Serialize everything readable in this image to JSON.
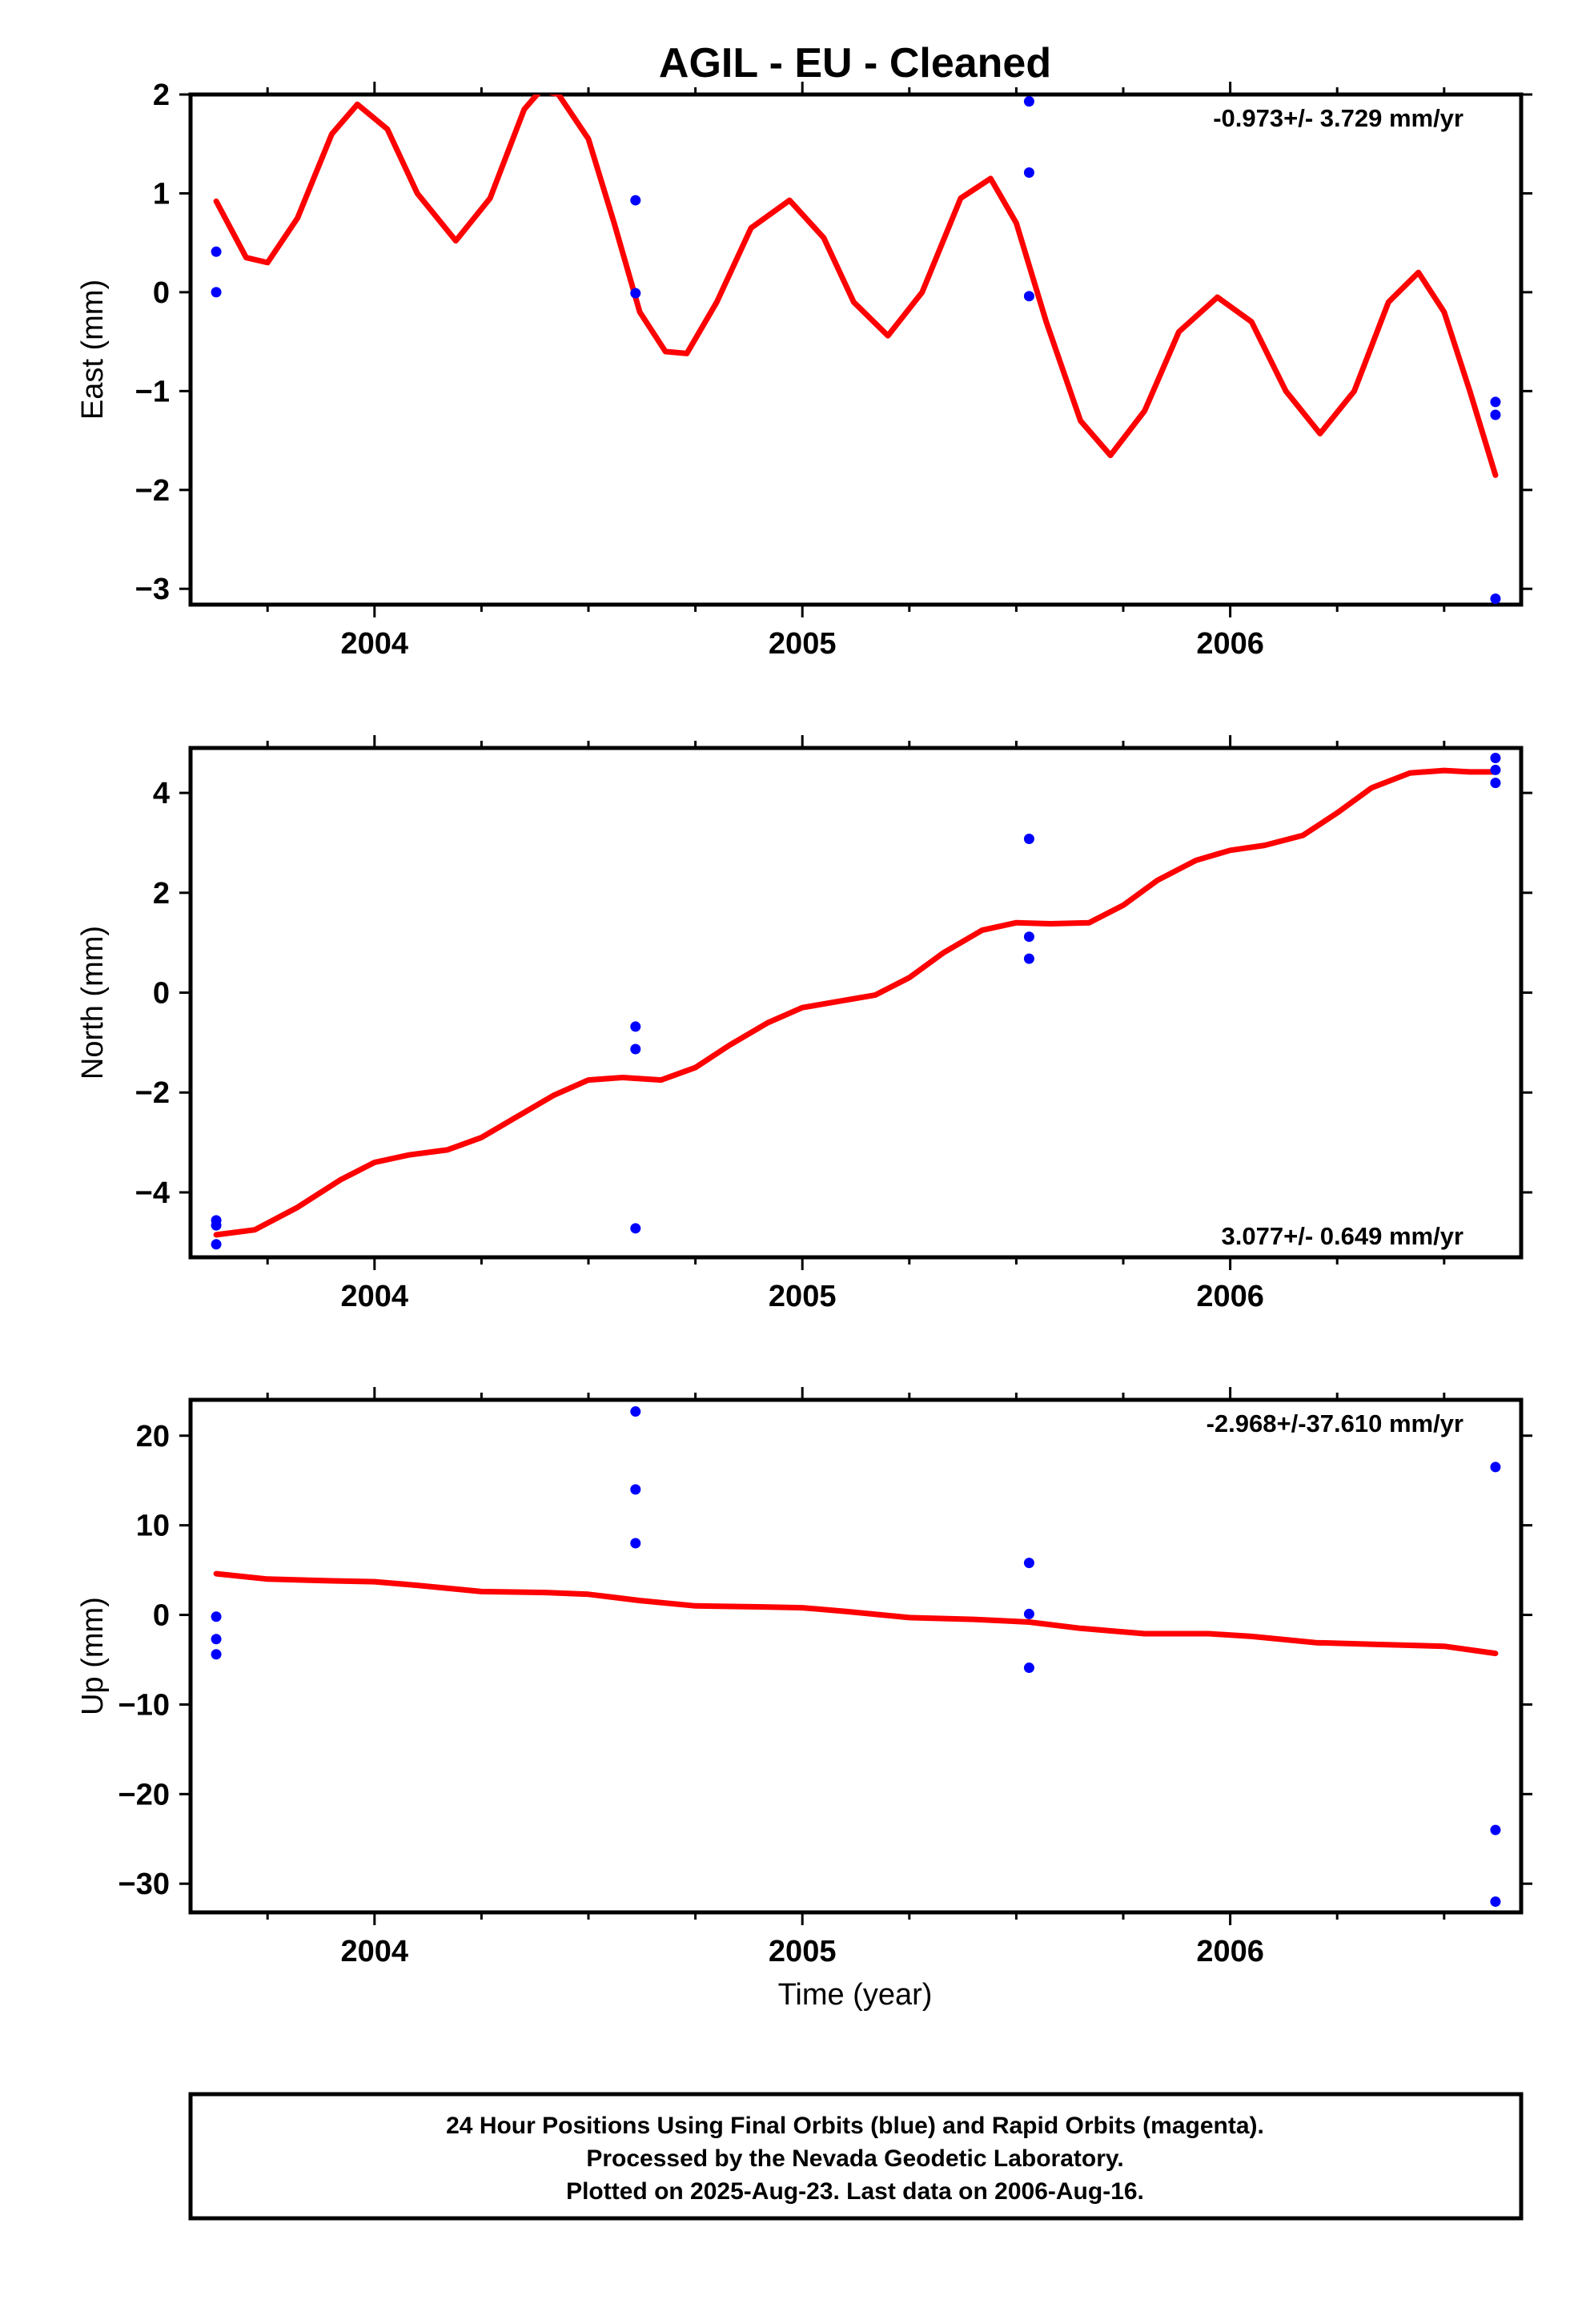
{
  "title": "AGIL  - EU - Cleaned",
  "xlabel": "Time (year)",
  "footer": {
    "lines": [
      "24 Hour Positions Using Final Orbits (blue) and Rapid Orbits (magenta).",
      "Processed by the Nevada Geodetic Laboratory.",
      "Plotted on 2025-Aug-23. Last data on 2006-Aug-16."
    ]
  },
  "colors": {
    "points": "#0000ff",
    "model": "#ff0000",
    "frame": "#000000"
  },
  "chart_data": [
    {
      "type": "scatter",
      "ylabel": "East (mm)",
      "rate_label": "-0.973+/- 3.729 mm/yr",
      "xlim": [
        2003.57,
        2006.68
      ],
      "ylim": [
        -3.16,
        2.0
      ],
      "x_ticks": [
        2004,
        2005,
        2006
      ],
      "x_tick_labels": [
        "2004",
        "2005",
        "2006"
      ],
      "y_ticks": [
        2,
        1,
        0,
        -1,
        -2,
        -3
      ],
      "y_tick_labels": [
        "2",
        "1",
        "0",
        "−1",
        "−2",
        "−3"
      ],
      "points": [
        {
          "x": 2003.63,
          "y": 0.41
        },
        {
          "x": 2003.63,
          "y": 0.0
        },
        {
          "x": 2004.61,
          "y": 0.93
        },
        {
          "x": 2004.61,
          "y": -0.01
        },
        {
          "x": 2005.53,
          "y": 1.93
        },
        {
          "x": 2005.53,
          "y": 1.21
        },
        {
          "x": 2005.53,
          "y": -0.04
        },
        {
          "x": 2006.62,
          "y": -1.11
        },
        {
          "x": 2006.62,
          "y": -1.24
        },
        {
          "x": 2006.62,
          "y": -3.1
        }
      ],
      "model": {
        "x": [
          2003.63,
          2003.7,
          2003.75,
          2003.82,
          2003.9,
          2003.96,
          2004.03,
          2004.1,
          2004.19,
          2004.27,
          2004.35,
          2004.39,
          2004.43,
          2004.5,
          2004.56,
          2004.62,
          2004.68,
          2004.73,
          2004.8,
          2004.88,
          2004.97,
          2005.05,
          2005.12,
          2005.2,
          2005.28,
          2005.37,
          2005.44,
          2005.5,
          2005.57,
          2005.65,
          2005.72,
          2005.8,
          2005.88,
          2005.97,
          2006.05,
          2006.13,
          2006.21,
          2006.29,
          2006.37,
          2006.44,
          2006.5,
          2006.56,
          2006.62
        ],
        "y": [
          0.92,
          0.35,
          0.3,
          0.75,
          1.6,
          1.9,
          1.65,
          1.0,
          0.52,
          0.95,
          1.85,
          2.05,
          2.0,
          1.55,
          0.7,
          -0.2,
          -0.6,
          -0.62,
          -0.1,
          0.65,
          0.93,
          0.55,
          -0.1,
          -0.44,
          0.0,
          0.95,
          1.15,
          0.7,
          -0.3,
          -1.3,
          -1.65,
          -1.2,
          -0.4,
          -0.05,
          -0.3,
          -1.0,
          -1.43,
          -1.0,
          -0.1,
          0.2,
          -0.2,
          -1.0,
          -1.85
        ]
      }
    },
    {
      "type": "scatter",
      "ylabel": "North (mm)",
      "rate_label": "3.077+/- 0.649 mm/yr",
      "xlim": [
        2003.57,
        2006.68
      ],
      "ylim": [
        -5.3,
        4.9
      ],
      "x_ticks": [
        2004,
        2005,
        2006
      ],
      "x_tick_labels": [
        "2004",
        "2005",
        "2006"
      ],
      "y_ticks": [
        4,
        2,
        0,
        -2,
        -4
      ],
      "y_tick_labels": [
        "4",
        "2",
        "0",
        "−2",
        "−4"
      ],
      "points": [
        {
          "x": 2003.63,
          "y": -4.56
        },
        {
          "x": 2003.63,
          "y": -4.66
        },
        {
          "x": 2003.63,
          "y": -5.04
        },
        {
          "x": 2004.61,
          "y": -0.68
        },
        {
          "x": 2004.61,
          "y": -1.13
        },
        {
          "x": 2004.61,
          "y": -4.72
        },
        {
          "x": 2005.53,
          "y": 3.08
        },
        {
          "x": 2005.53,
          "y": 1.12
        },
        {
          "x": 2005.53,
          "y": 0.68
        },
        {
          "x": 2006.62,
          "y": 4.7
        },
        {
          "x": 2006.62,
          "y": 4.46
        },
        {
          "x": 2006.62,
          "y": 4.2
        }
      ],
      "model": {
        "x": [
          2003.63,
          2003.72,
          2003.82,
          2003.92,
          2004.0,
          2004.08,
          2004.17,
          2004.25,
          2004.33,
          2004.42,
          2004.5,
          2004.58,
          2004.67,
          2004.75,
          2004.83,
          2004.92,
          2005.0,
          2005.08,
          2005.17,
          2005.25,
          2005.33,
          2005.42,
          2005.5,
          2005.58,
          2005.67,
          2005.75,
          2005.83,
          2005.92,
          2006.0,
          2006.08,
          2006.17,
          2006.25,
          2006.33,
          2006.42,
          2006.5,
          2006.56,
          2006.62
        ],
        "y": [
          -4.85,
          -4.75,
          -4.3,
          -3.75,
          -3.4,
          -3.25,
          -3.15,
          -2.9,
          -2.5,
          -2.05,
          -1.75,
          -1.7,
          -1.75,
          -1.5,
          -1.05,
          -0.6,
          -0.3,
          -0.18,
          -0.05,
          0.3,
          0.8,
          1.25,
          1.4,
          1.38,
          1.4,
          1.75,
          2.25,
          2.65,
          2.85,
          2.95,
          3.15,
          3.6,
          4.1,
          4.4,
          4.45,
          4.42,
          4.42
        ]
      }
    },
    {
      "type": "scatter",
      "ylabel": "Up (mm)",
      "rate_label": "-2.968+/-37.610 mm/yr",
      "xlim": [
        2003.57,
        2006.68
      ],
      "ylim": [
        -33.2,
        24.0
      ],
      "x_ticks": [
        2004,
        2005,
        2006
      ],
      "x_tick_labels": [
        "2004",
        "2005",
        "2006"
      ],
      "y_ticks": [
        20,
        10,
        0,
        -10,
        -20,
        -30
      ],
      "y_tick_labels": [
        "20",
        "10",
        "0",
        "−10",
        "−20",
        "−30"
      ],
      "points": [
        {
          "x": 2003.63,
          "y": -0.2
        },
        {
          "x": 2003.63,
          "y": -2.7
        },
        {
          "x": 2003.63,
          "y": -4.4
        },
        {
          "x": 2004.61,
          "y": 22.7
        },
        {
          "x": 2004.61,
          "y": 14.0
        },
        {
          "x": 2004.61,
          "y": 8.0
        },
        {
          "x": 2005.53,
          "y": 5.8
        },
        {
          "x": 2005.53,
          "y": 0.1
        },
        {
          "x": 2005.53,
          "y": -5.9
        },
        {
          "x": 2006.62,
          "y": 16.5
        },
        {
          "x": 2006.62,
          "y": -24.0
        },
        {
          "x": 2006.62,
          "y": -32.0
        }
      ],
      "model": {
        "x": [
          2003.63,
          2003.75,
          2003.9,
          2004.0,
          2004.1,
          2004.25,
          2004.4,
          2004.5,
          2004.62,
          2004.75,
          2004.9,
          2005.0,
          2005.1,
          2005.25,
          2005.4,
          2005.53,
          2005.65,
          2005.8,
          2005.95,
          2006.05,
          2006.2,
          2006.35,
          2006.5,
          2006.62
        ],
        "y": [
          4.6,
          4.0,
          3.8,
          3.7,
          3.3,
          2.6,
          2.5,
          2.3,
          1.6,
          1.0,
          0.9,
          0.8,
          0.4,
          -0.3,
          -0.5,
          -0.8,
          -1.5,
          -2.1,
          -2.1,
          -2.4,
          -3.1,
          -3.3,
          -3.5,
          -4.3
        ]
      }
    }
  ]
}
